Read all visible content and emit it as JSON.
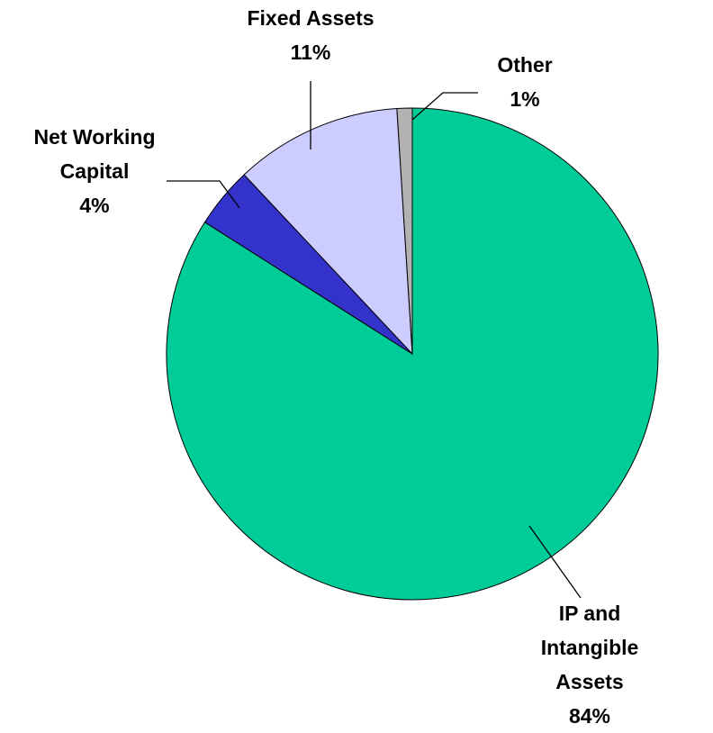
{
  "chart_data": {
    "type": "pie",
    "categories": [
      "IP and\nIntangible Assets",
      "Net Working\nCapital",
      "Fixed Assets",
      "Other"
    ],
    "values": [
      84,
      4,
      11,
      1
    ],
    "value_labels": [
      "84%",
      "4%",
      "11%",
      "1%"
    ],
    "colors": [
      "#00cc99",
      "#3333cc",
      "#ccccff",
      "#b2b2b2"
    ]
  }
}
